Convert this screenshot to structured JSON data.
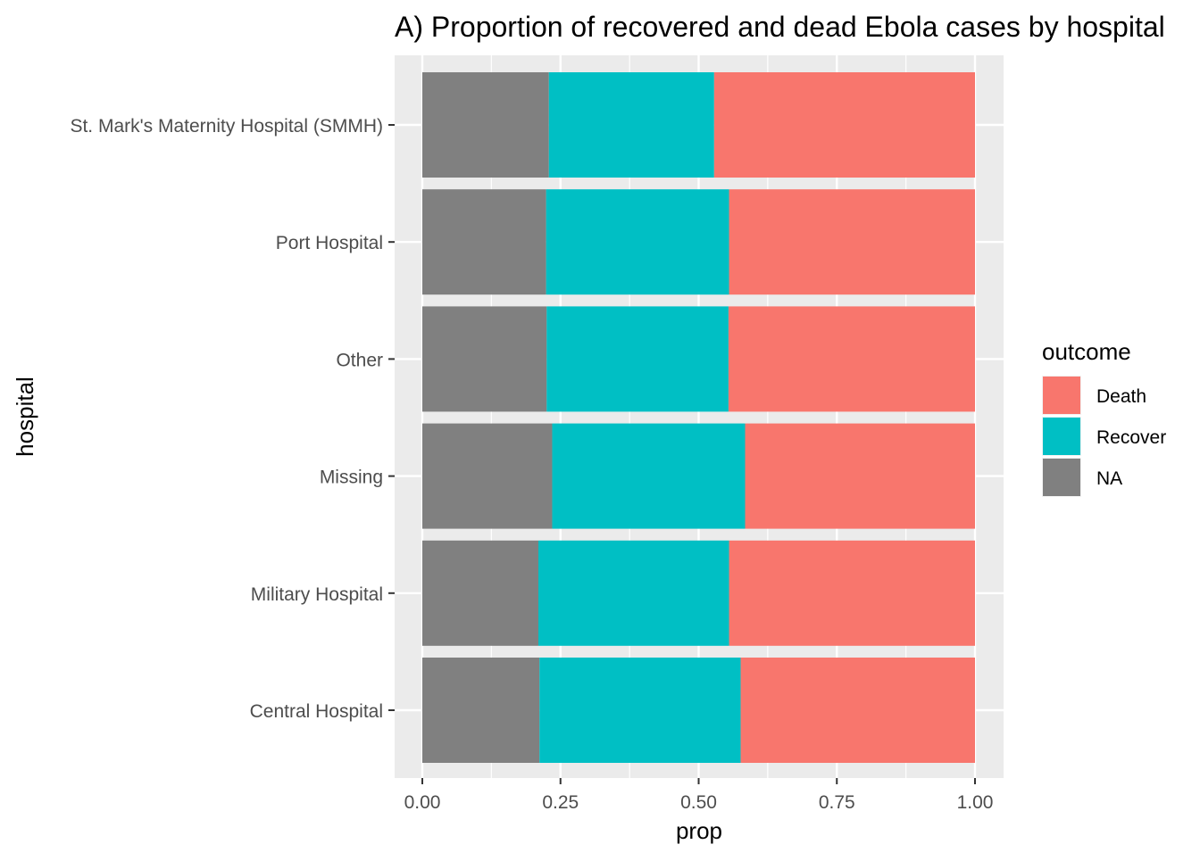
{
  "chart_data": {
    "type": "bar",
    "orientation": "horizontal",
    "stacked": true,
    "title": "A) Proportion of recovered and dead Ebola cases by hospital",
    "xlabel": "prop",
    "ylabel": "hospital",
    "xlim": [
      0,
      1
    ],
    "xticks": [
      "0.00",
      "0.25",
      "0.50",
      "0.75",
      "1.00"
    ],
    "xtick_values": [
      0,
      0.25,
      0.5,
      0.75,
      1.0
    ],
    "grid": true,
    "legend": {
      "title": "outcome",
      "position": "right",
      "entries": [
        "Death",
        "Recover",
        "NA"
      ]
    },
    "categories": [
      "St. Mark's Maternity Hospital (SMMH)",
      "Port Hospital",
      "Other",
      "Missing",
      "Military Hospital",
      "Central Hospital"
    ],
    "series": [
      {
        "name": "NA",
        "color": "#808080",
        "values": [
          0.229,
          0.224,
          0.225,
          0.235,
          0.21,
          0.212
        ]
      },
      {
        "name": "Recover",
        "color": "#00BFC4",
        "values": [
          0.299,
          0.331,
          0.329,
          0.349,
          0.345,
          0.364
        ]
      },
      {
        "name": "Death",
        "color": "#F8766D",
        "values": [
          0.472,
          0.445,
          0.446,
          0.416,
          0.445,
          0.424
        ]
      }
    ],
    "legend_order": [
      "Death",
      "Recover",
      "NA"
    ],
    "colors": {
      "panel": "#EBEBEB",
      "grid_major": "#FFFFFF",
      "text": "#000000",
      "tick_text": "#4D4D4D",
      "tick_mark": "#333333"
    }
  }
}
